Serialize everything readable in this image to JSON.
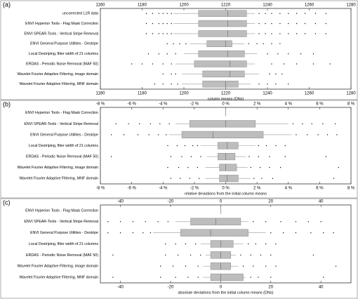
{
  "chart_data": [
    {
      "type": "box",
      "panel_label": "(a)",
      "xlabel": "column means (DNs)",
      "xlim": [
        1160,
        1280
      ],
      "xticks": [
        1160,
        1180,
        1200,
        1220,
        1240,
        1260,
        1280
      ],
      "categories": [
        "uncorrected L1R data",
        "ENVI Hyperion Tools - Flag Mask Correction",
        "ENVI SPEAR-Tools - Vertical Stripe Removal",
        "ENVI General Purpose Utilities - Destripe",
        "Local Destriping, filter width of 21 columns",
        "ERDAS - Periodic Noise Removal (MAF 50)",
        "Wavelet Fourier Adaptive Filtering, image domain",
        "Wavelet Fourier Adaptive Filtering, MNF domain"
      ],
      "boxes": [
        {
          "whislo": 1195,
          "q1": 1207,
          "med": 1221,
          "q3": 1230,
          "whishi": 1234,
          "fliers": [
            1182,
            1185,
            1188,
            1190,
            1192,
            1194,
            1236,
            1239,
            1242,
            1246,
            1250,
            1254,
            1258,
            1263,
            1268
          ]
        },
        {
          "whislo": 1195,
          "q1": 1207,
          "med": 1221,
          "q3": 1230,
          "whishi": 1234,
          "fliers": [
            1182,
            1185,
            1188,
            1190,
            1192,
            1194,
            1236,
            1239,
            1242,
            1246,
            1250,
            1254,
            1258,
            1263,
            1268
          ]
        },
        {
          "whislo": 1195,
          "q1": 1207,
          "med": 1221,
          "q3": 1230,
          "whishi": 1234,
          "fliers": [
            1182,
            1185,
            1188,
            1190,
            1192,
            1194,
            1236,
            1239,
            1242,
            1246,
            1250,
            1254,
            1258,
            1263,
            1268
          ]
        },
        {
          "whislo": 1203,
          "q1": 1211,
          "med": 1220,
          "q3": 1223,
          "whishi": 1229,
          "fliers": [
            1192,
            1195,
            1198,
            1201,
            1231,
            1235,
            1238,
            1242,
            1246
          ]
        },
        {
          "whislo": 1200,
          "q1": 1207,
          "med": 1221,
          "q3": 1229,
          "whishi": 1235,
          "fliers": [
            1183,
            1188,
            1192,
            1196,
            1240,
            1245,
            1250,
            1256,
            1262
          ]
        },
        {
          "whislo": 1196,
          "q1": 1205,
          "med": 1222,
          "q3": 1230,
          "whishi": 1234,
          "fliers": [
            1175,
            1180,
            1185,
            1190,
            1194,
            1242,
            1248,
            1254,
            1262,
            1270
          ]
        },
        {
          "whislo": 1199,
          "q1": 1209,
          "med": 1222,
          "q3": 1229,
          "whishi": 1236,
          "fliers": [
            1190,
            1194,
            1196,
            1241,
            1244,
            1247
          ]
        },
        {
          "whislo": 1199,
          "q1": 1209,
          "med": 1220,
          "q3": 1226,
          "whishi": 1232,
          "fliers": [
            1186,
            1190,
            1194,
            1197,
            1236,
            1240,
            1244,
            1250
          ]
        }
      ]
    },
    {
      "type": "box",
      "panel_label": "(b)",
      "xlabel": "relative deviations from the initial column means",
      "xlim": [
        -8,
        8
      ],
      "xticks": [
        {
          "value": -8,
          "label": "-8 %"
        },
        {
          "value": -6,
          "label": "-6 %"
        },
        {
          "value": -4,
          "label": "-4 %"
        },
        {
          "value": -2,
          "label": "-2 %"
        },
        {
          "value": 0,
          "label": "0 %"
        },
        {
          "value": 2,
          "label": "2 %"
        },
        {
          "value": 4,
          "label": "4 %"
        },
        {
          "value": 6,
          "label": "6 %"
        },
        {
          "value": 8,
          "label": "8 %"
        }
      ],
      "categories": [
        "ENVI Hyperion Tools - Flag Mask Correction",
        "ENVI SPEAR-Tools - Vertical Stripe Removal",
        "ENVI General Purpose Utilities - Destripe",
        "Local Destriping, filter width of 21 columns",
        "ERDAS - Periodic Noise Removal (MAF 50)",
        "Wavelet Fourier Adaptive Filtering, image domain",
        "Wavelet Fourier Adaptive Filtering, MNF domain"
      ],
      "boxes": [
        {
          "whislo": 0,
          "q1": 0,
          "med": 0,
          "q3": 0,
          "whishi": 0,
          "fliers": []
        },
        {
          "whislo": -3.2,
          "q1": -2.3,
          "med": 0,
          "q3": 1.9,
          "whishi": 4,
          "fliers": [
            -7,
            -6.2,
            -5.5,
            -4.8,
            -4.2,
            -3.6,
            4.3,
            4.9,
            5.5,
            6.2,
            7
          ]
        },
        {
          "whislo": -3.6,
          "q1": -2.8,
          "med": -0.8,
          "q3": 2.4,
          "whishi": 4.2,
          "fliers": [
            -7.3,
            -6.5,
            -5.6,
            -4.9,
            -4.3,
            -3.8,
            4.5,
            5.2,
            5.9,
            6.5,
            7.1
          ]
        },
        {
          "whislo": -1.6,
          "q1": -0.5,
          "med": 0.1,
          "q3": 0.8,
          "whishi": 1.9,
          "fliers": [
            -3.7,
            -3.1,
            -2.6,
            -2.1,
            -1.8,
            2.1,
            2.6,
            3.2,
            3.8
          ]
        },
        {
          "whislo": -1.2,
          "q1": -0.5,
          "med": 0,
          "q3": 0.6,
          "whishi": 1.3,
          "fliers": [
            -7.3,
            -3.5,
            -2.8,
            -2.2,
            -1.6,
            1.5,
            2.1,
            2.8,
            3.8,
            6.4
          ]
        },
        {
          "whislo": -1.3,
          "q1": -0.4,
          "med": 0,
          "q3": 0.7,
          "whishi": 1.4,
          "fliers": [
            -3.7,
            -3,
            -2.4,
            -1.8,
            1.6,
            2.2,
            2.8,
            3.5,
            7.2
          ]
        },
        {
          "whislo": -1.3,
          "q1": -0.4,
          "med": 0.1,
          "q3": 0.8,
          "whishi": 1.6,
          "fliers": [
            -3.5,
            -2.9,
            -2.3,
            -1.7,
            1.8,
            2.3,
            3,
            6.9
          ]
        }
      ]
    },
    {
      "type": "box",
      "panel_label": "(c)",
      "xlabel": "absolute deviations from the initial column means (DNs)",
      "xlim": [
        -48,
        52
      ],
      "xticks": [
        -40,
        -20,
        0,
        20,
        40
      ],
      "categories": [
        "ENVI Hyperion Tools - Flag Mask Correction",
        "ENVI SPEAR-Tools - Vertical Stripe Removal",
        "ENVI General Purpose Utilities - Destripe",
        "Local Destriping, filter width of 21 columns",
        "ERDAS - Periodic Noise Removal (MAF 50)",
        "Wavelet Fourier Adaptive Filtering, image domain",
        "Wavelet Fourier Adaptive Filtering, MNF domain"
      ],
      "boxes": [
        {
          "whislo": 0,
          "q1": 0,
          "med": 0,
          "q3": 0,
          "whishi": 0,
          "fliers": []
        },
        {
          "whislo": -18,
          "q1": -12,
          "med": -2,
          "q3": 8,
          "whishi": 11,
          "fliers": [
            -45,
            -40,
            -35,
            -30,
            -25,
            -21,
            13,
            18,
            24,
            30,
            35,
            40
          ]
        },
        {
          "whislo": -27,
          "q1": -16,
          "med": -4,
          "q3": 11,
          "whishi": 18,
          "fliers": [
            -45,
            -40,
            -35,
            -31,
            -28,
            20,
            25,
            30,
            36,
            41,
            45
          ]
        },
        {
          "whislo": -8,
          "q1": -4,
          "med": 0,
          "q3": 5,
          "whishi": 9,
          "fliers": [
            -22,
            -18,
            -14,
            -10,
            11,
            14,
            18,
            22
          ]
        },
        {
          "whislo": -6,
          "q1": -4,
          "med": 0,
          "q3": 4,
          "whishi": 6,
          "fliers": [
            -43,
            -22,
            -17,
            -12,
            -8,
            8,
            12,
            16,
            20,
            37
          ]
        },
        {
          "whislo": -7,
          "q1": -4,
          "med": 0,
          "q3": 4,
          "whishi": 7,
          "fliers": [
            -24,
            -19,
            -14,
            -9,
            9,
            13,
            18,
            22,
            46
          ]
        },
        {
          "whislo": -7,
          "q1": -4,
          "med": 0,
          "q3": 9,
          "whishi": 10,
          "fliers": [
            -43,
            -24,
            -18,
            -13,
            -9,
            12,
            15,
            20,
            41
          ]
        }
      ]
    }
  ]
}
